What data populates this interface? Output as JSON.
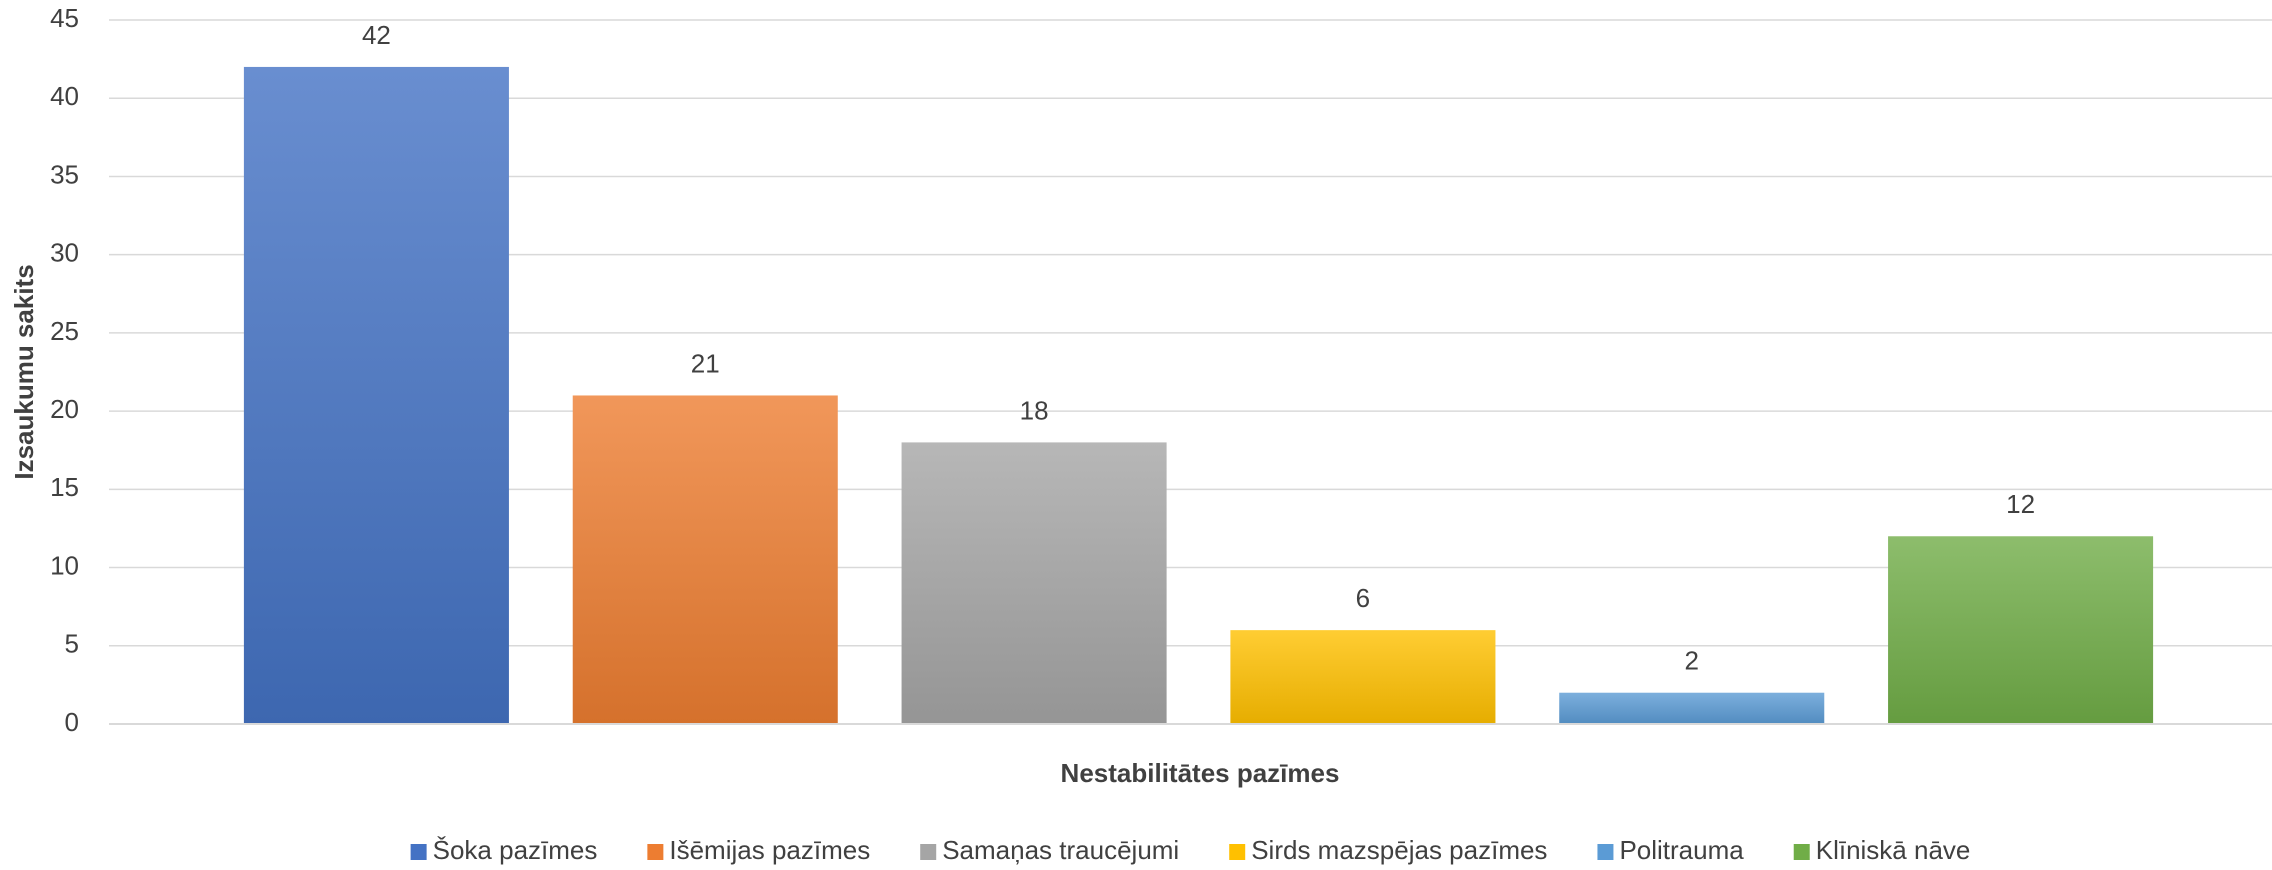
{
  "chart_data": {
    "type": "bar",
    "x_label": "Nestabilitātes pazīmes",
    "y_label": "Izsaukumu sakits",
    "categories": [
      null
    ],
    "series": [
      {
        "name": "Šoka pazīmes",
        "color": "#4472c4",
        "values": [
          42
        ]
      },
      {
        "name": "Išēmijas pazīmes",
        "color": "#ed7d31",
        "values": [
          21
        ]
      },
      {
        "name": "Samaņas traucējumi",
        "color": "#a5a5a5",
        "values": [
          18
        ]
      },
      {
        "name": "Sirds mazspējas pazīmes",
        "color": "#ffc000",
        "values": [
          6
        ]
      },
      {
        "name": "Politrauma",
        "color": "#5b9bd5",
        "values": [
          2
        ]
      },
      {
        "name": "Klīniskā nāve",
        "color": "#70ad47",
        "values": [
          12
        ]
      }
    ],
    "ylim": [
      0,
      45
    ],
    "yticks": [
      0,
      5,
      10,
      15,
      20,
      25,
      30,
      35,
      40,
      45
    ],
    "grid": true,
    "legend": "bottom"
  }
}
